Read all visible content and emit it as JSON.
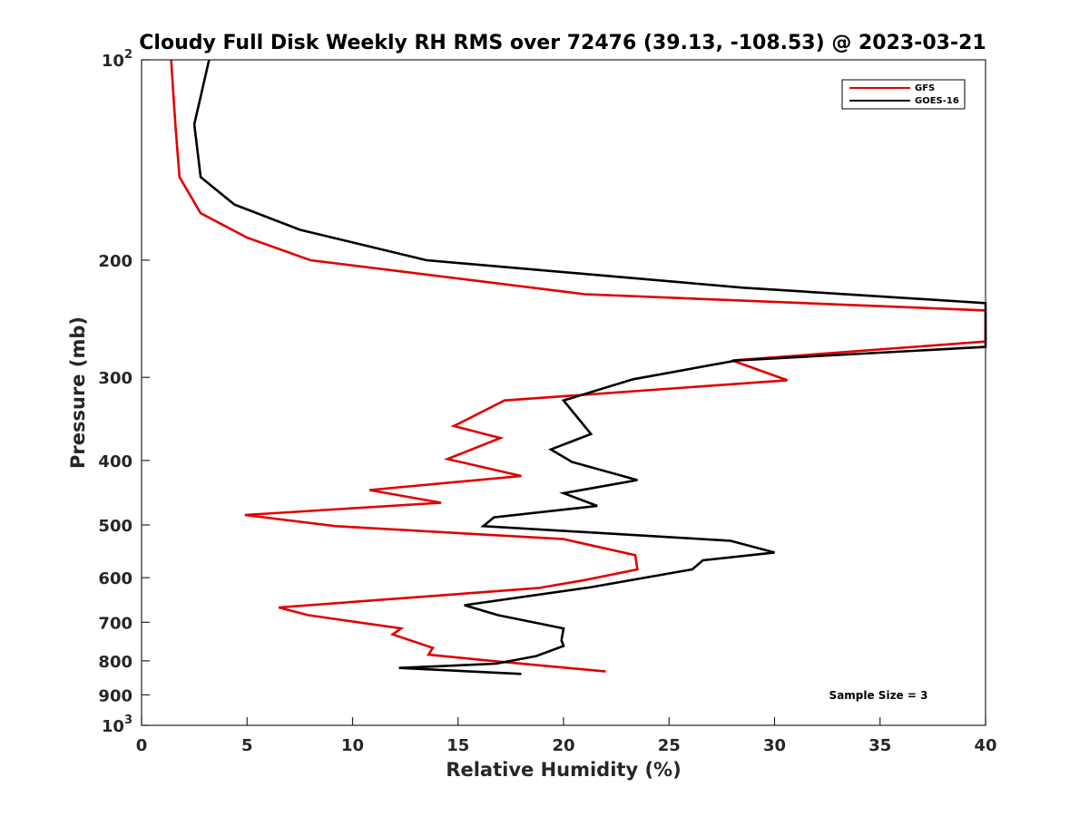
{
  "chart_data": {
    "type": "line",
    "title": "Cloudy Full Disk Weekly RH RMS over 72476 (39.13, -108.53) @ 2023-03-21",
    "xlabel": "Relative Humidity (%)",
    "ylabel": "Pressure (mb)",
    "xlim": [
      0,
      40
    ],
    "ylim": [
      100,
      1000
    ],
    "y_scale": "log",
    "y_reversed": true,
    "x_ticks": [
      0,
      5,
      10,
      15,
      20,
      25,
      30,
      35,
      40
    ],
    "y_ticks": [
      {
        "value": 100,
        "base": "10",
        "exp": "2"
      },
      {
        "value": 200,
        "label": "200"
      },
      {
        "value": 300,
        "label": "300"
      },
      {
        "value": 400,
        "label": "400"
      },
      {
        "value": 500,
        "label": "500"
      },
      {
        "value": 600,
        "label": "600"
      },
      {
        "value": 700,
        "label": "700"
      },
      {
        "value": 800,
        "label": "800"
      },
      {
        "value": 900,
        "label": "900"
      },
      {
        "value": 1000,
        "base": "10",
        "exp": "3"
      }
    ],
    "grid": false,
    "legend_position": "top-right",
    "series": [
      {
        "name": "GFS",
        "color": "#e00000",
        "points": [
          [
            1.4,
            100
          ],
          [
            1.6,
            125
          ],
          [
            1.8,
            150
          ],
          [
            2.8,
            170
          ],
          [
            5.0,
            185
          ],
          [
            8.0,
            200
          ],
          [
            21.0,
            225
          ],
          [
            40.0,
            238
          ],
          [
            40.0,
            265
          ],
          [
            28.0,
            283
          ],
          [
            30.6,
            303
          ],
          [
            17.2,
            325
          ],
          [
            14.8,
            355
          ],
          [
            17.0,
            370
          ],
          [
            14.5,
            398
          ],
          [
            18.0,
            422
          ],
          [
            10.8,
            443
          ],
          [
            14.2,
            463
          ],
          [
            4.9,
            483
          ],
          [
            9.2,
            502
          ],
          [
            20.0,
            525
          ],
          [
            23.4,
            555
          ],
          [
            23.5,
            583
          ],
          [
            21.0,
            605
          ],
          [
            18.8,
            622
          ],
          [
            6.5,
            665
          ],
          [
            7.9,
            683
          ],
          [
            12.3,
            715
          ],
          [
            11.9,
            730
          ],
          [
            13.8,
            765
          ],
          [
            13.6,
            783
          ],
          [
            16.2,
            798
          ],
          [
            22.0,
            830
          ]
        ]
      },
      {
        "name": "GOES-16",
        "color": "#000000",
        "points": [
          [
            3.2,
            100
          ],
          [
            2.5,
            125
          ],
          [
            2.8,
            150
          ],
          [
            4.4,
            165
          ],
          [
            7.5,
            180
          ],
          [
            13.5,
            200
          ],
          [
            28.5,
            220
          ],
          [
            40.0,
            232
          ],
          [
            40.0,
            270
          ],
          [
            28.2,
            283
          ],
          [
            23.3,
            302
          ],
          [
            20.0,
            325
          ],
          [
            21.3,
            365
          ],
          [
            19.4,
            385
          ],
          [
            20.4,
            402
          ],
          [
            23.5,
            428
          ],
          [
            20.0,
            448
          ],
          [
            21.6,
            468
          ],
          [
            16.7,
            487
          ],
          [
            16.2,
            502
          ],
          [
            27.9,
            528
          ],
          [
            30.0,
            550
          ],
          [
            26.6,
            565
          ],
          [
            26.1,
            583
          ],
          [
            21.3,
            620
          ],
          [
            15.3,
            660
          ],
          [
            16.9,
            683
          ],
          [
            20.0,
            715
          ],
          [
            19.9,
            745
          ],
          [
            20.0,
            760
          ],
          [
            18.7,
            787
          ],
          [
            16.8,
            808
          ],
          [
            12.2,
            820
          ],
          [
            18.0,
            837
          ]
        ]
      }
    ],
    "annotation": "Sample Size = 3"
  }
}
